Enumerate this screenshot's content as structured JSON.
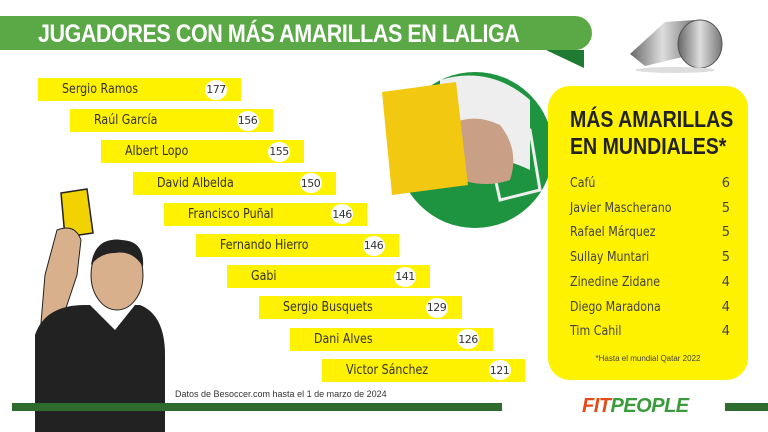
{
  "header": {
    "title": "JUGADORES CON MÁS AMARILLAS EN LALIGA"
  },
  "laliga": [
    {
      "name": "Sergio Ramos",
      "cards": "177"
    },
    {
      "name": "Raúl García",
      "cards": "156"
    },
    {
      "name": "Albert Lopo",
      "cards": "155"
    },
    {
      "name": "David Albelda",
      "cards": "150"
    },
    {
      "name": "Francisco Puñal",
      "cards": "146"
    },
    {
      "name": "Fernando Hierro",
      "cards": "146"
    },
    {
      "name": "Gabi",
      "cards": "141"
    },
    {
      "name": "Sergio Busquets",
      "cards": "129"
    },
    {
      "name": "Dani Alves",
      "cards": "126"
    },
    {
      "name": "Victor Sánchez",
      "cards": "121"
    }
  ],
  "mundiales": {
    "title_line1": "MÁS AMARILLAS",
    "title_line2": "EN MUNDIALES*",
    "rows": [
      {
        "name": "Cafú",
        "cards": "6"
      },
      {
        "name": "Javier Mascherano",
        "cards": "5"
      },
      {
        "name": "Rafael Márquez",
        "cards": "5"
      },
      {
        "name": "Sullay Muntari",
        "cards": "5"
      },
      {
        "name": "Zinedine Zidane",
        "cards": "4"
      },
      {
        "name": "Diego Maradona",
        "cards": "4"
      },
      {
        "name": "Tim Cahil",
        "cards": "4"
      }
    ],
    "note": "*Hasta el mundial Qatar 2022"
  },
  "footer": {
    "source": "Datos de Besoccer.com hasta el 1 de marzo de 2024",
    "logo_fit": "FIT",
    "logo_people": "PEOPLE"
  },
  "colors": {
    "green": "#5aa846",
    "dark_green": "#1f7a32",
    "yellow": "#fff200",
    "card": "#f2c811"
  }
}
